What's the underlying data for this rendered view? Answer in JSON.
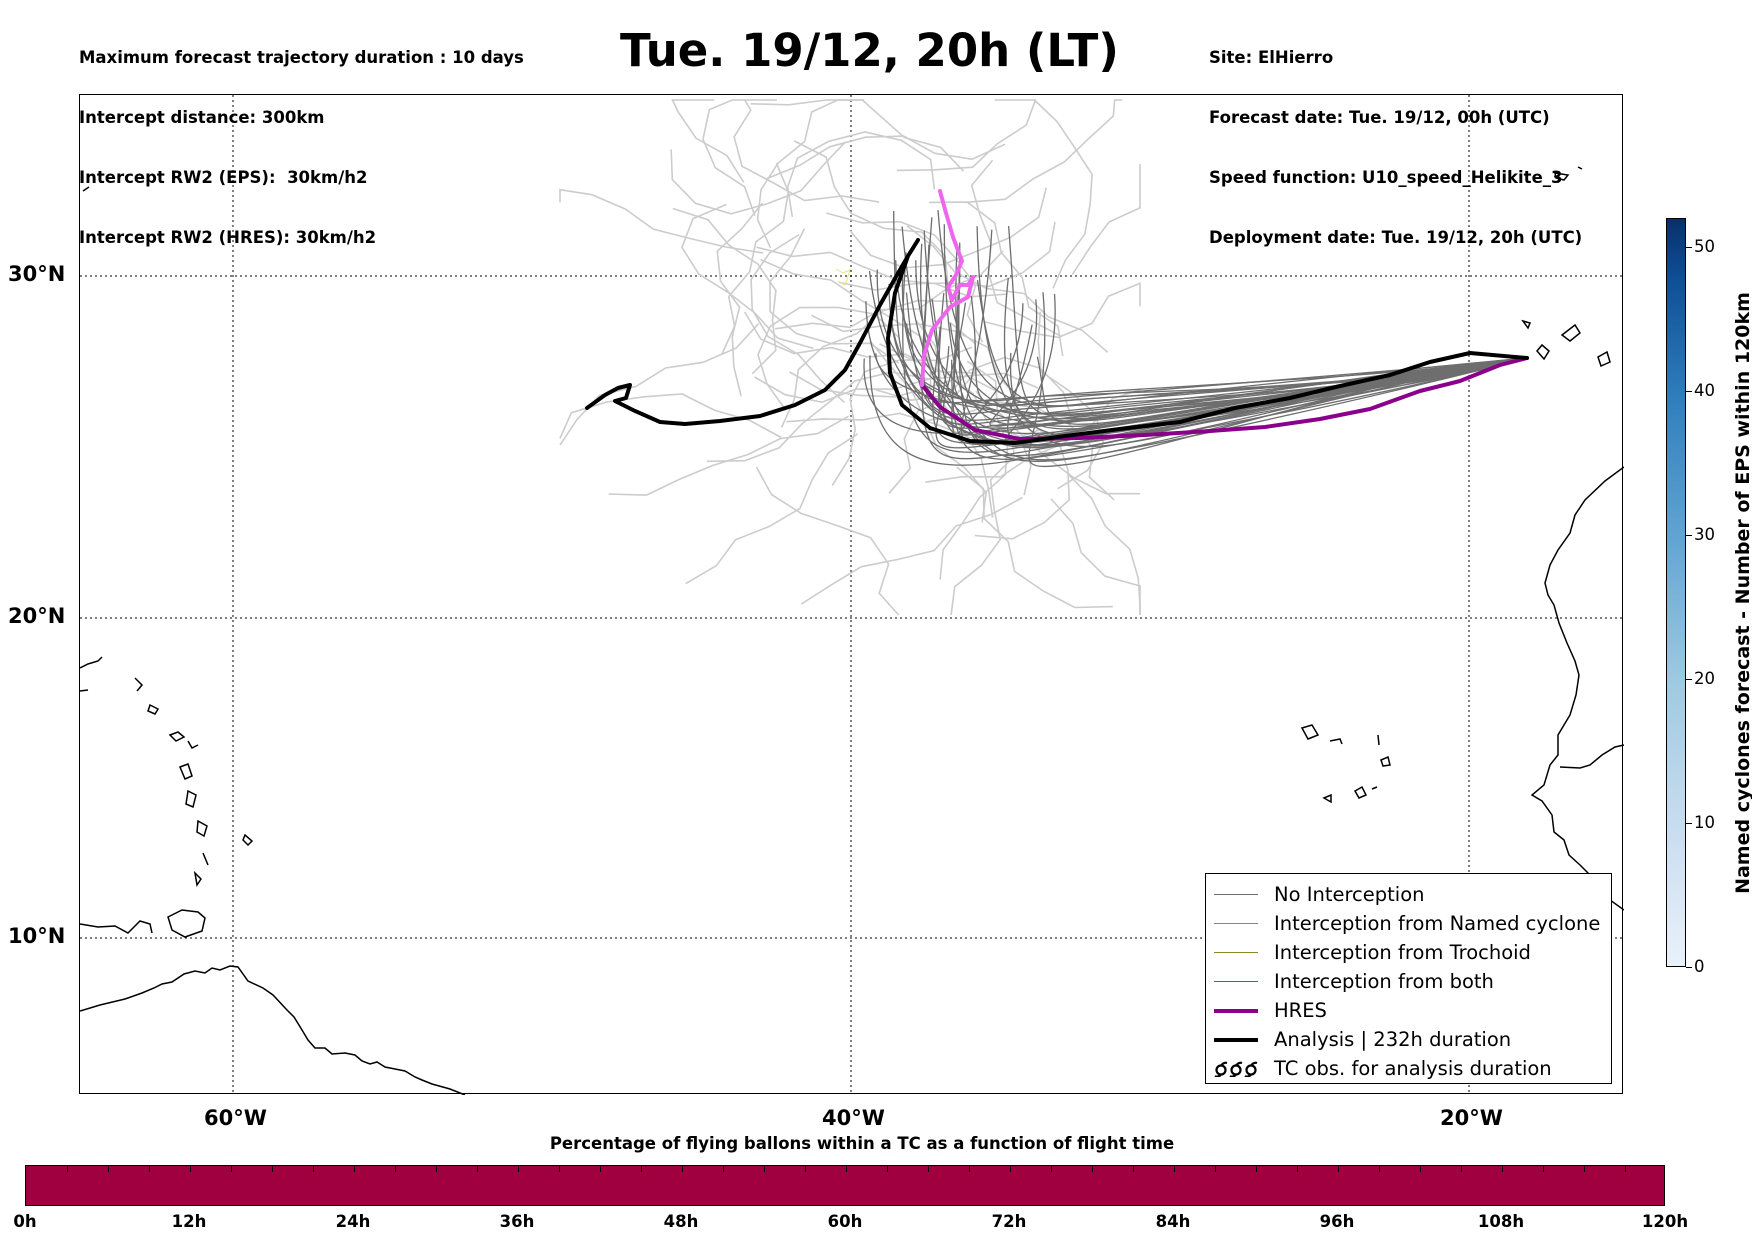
{
  "info_left": [
    "Maximum forecast trajectory duration : 10 days",
    "Intercept distance: 300km",
    "Intercept RW2 (EPS):  30km/h2",
    "Intercept RW2 (HRES): 30km/h2"
  ],
  "title": "Tue. 19/12, 20h (LT)",
  "info_right": [
    "Site: ElHierro",
    "Forecast date: Tue. 19/12, 00h (UTC)",
    "Speed function: U10_speed_Helikite_3",
    "Deployment date: Tue. 19/12, 20h (UTC)"
  ],
  "map": {
    "lat_labels": [
      "30°N",
      "20°N",
      "10°N"
    ],
    "lon_labels": [
      "60°W",
      "40°W",
      "20°W"
    ],
    "colors": {
      "no_interception": "#6e6e6e",
      "eps_light": "#cccccc",
      "named_cyclone": "#e8622a",
      "trochoid": "#8a8a2a",
      "both": "#2e8b2e",
      "hres": "#8b008b",
      "hres_part": "#ee66ee",
      "analysis": "#000000"
    }
  },
  "legend": {
    "items": [
      {
        "label": "No Interception",
        "color": "#6e6e6e",
        "width": 1.2
      },
      {
        "label": "Interception from Named cyclone",
        "color": "#e8622a",
        "width": 1.2
      },
      {
        "label": "Interception from Trochoid",
        "color": "#8a8a2a",
        "width": 1.2
      },
      {
        "label": "Interception from both",
        "color": "#2e8b2e",
        "width": 1.2
      },
      {
        "label": "HRES",
        "color": "#8b008b",
        "width": 4
      },
      {
        "label": "Analysis | 232h duration",
        "color": "#000000",
        "width": 4
      }
    ],
    "tc_obs_label": "TC obs. for analysis duration",
    "tc_obs_icon": "cyclone-symbols-icon"
  },
  "colorbar_right": {
    "label": "Named cyclones forecast - Number of EPS within 120km",
    "ticks": [
      "0",
      "10",
      "20",
      "30",
      "40",
      "50"
    ],
    "range": [
      0,
      52
    ]
  },
  "colorbar_bottom": {
    "title": "Percentage of flying ballons within a TC as a function of flight time",
    "color": "#a0003f",
    "hour_labels": [
      "0h",
      "12h",
      "24h",
      "36h",
      "48h",
      "60h",
      "72h",
      "84h",
      "96h",
      "108h",
      "120h"
    ]
  }
}
